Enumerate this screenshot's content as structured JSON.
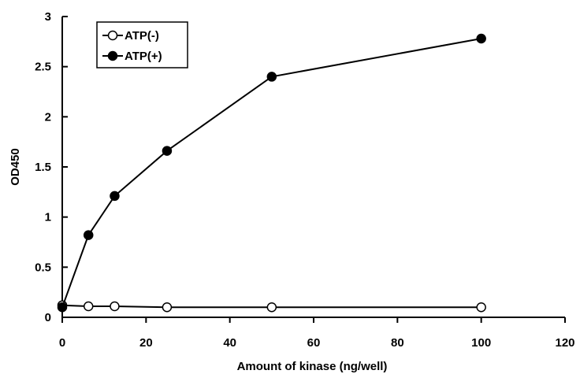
{
  "chart_data": {
    "type": "line",
    "title": "",
    "xlabel": "Amount of kinase (ng/well)",
    "ylabel": "OD450",
    "xlim": [
      0,
      120
    ],
    "ylim": [
      0,
      3
    ],
    "xticks": [
      0,
      20,
      40,
      60,
      80,
      100,
      120
    ],
    "yticks": [
      0,
      0.5,
      1,
      1.5,
      2,
      2.5,
      3
    ],
    "xtick_labels": [
      "0",
      "20",
      "40",
      "60",
      "80",
      "100",
      "120"
    ],
    "ytick_labels": [
      "0",
      "0.5",
      "1",
      "1.5",
      "2",
      "2.5",
      "3"
    ],
    "grid": false,
    "legend_position": "top-left",
    "series": [
      {
        "name": "ATP(-)",
        "marker": "open-circle",
        "color": "#000000",
        "x": [
          0,
          6.25,
          12.5,
          25,
          50,
          100
        ],
        "y": [
          0.12,
          0.11,
          0.11,
          0.1,
          0.1,
          0.1
        ]
      },
      {
        "name": "ATP(+)",
        "marker": "filled-circle",
        "color": "#000000",
        "x": [
          0,
          6.25,
          12.5,
          25,
          50,
          100
        ],
        "y": [
          0.1,
          0.82,
          1.21,
          1.66,
          2.4,
          2.78
        ]
      }
    ]
  }
}
